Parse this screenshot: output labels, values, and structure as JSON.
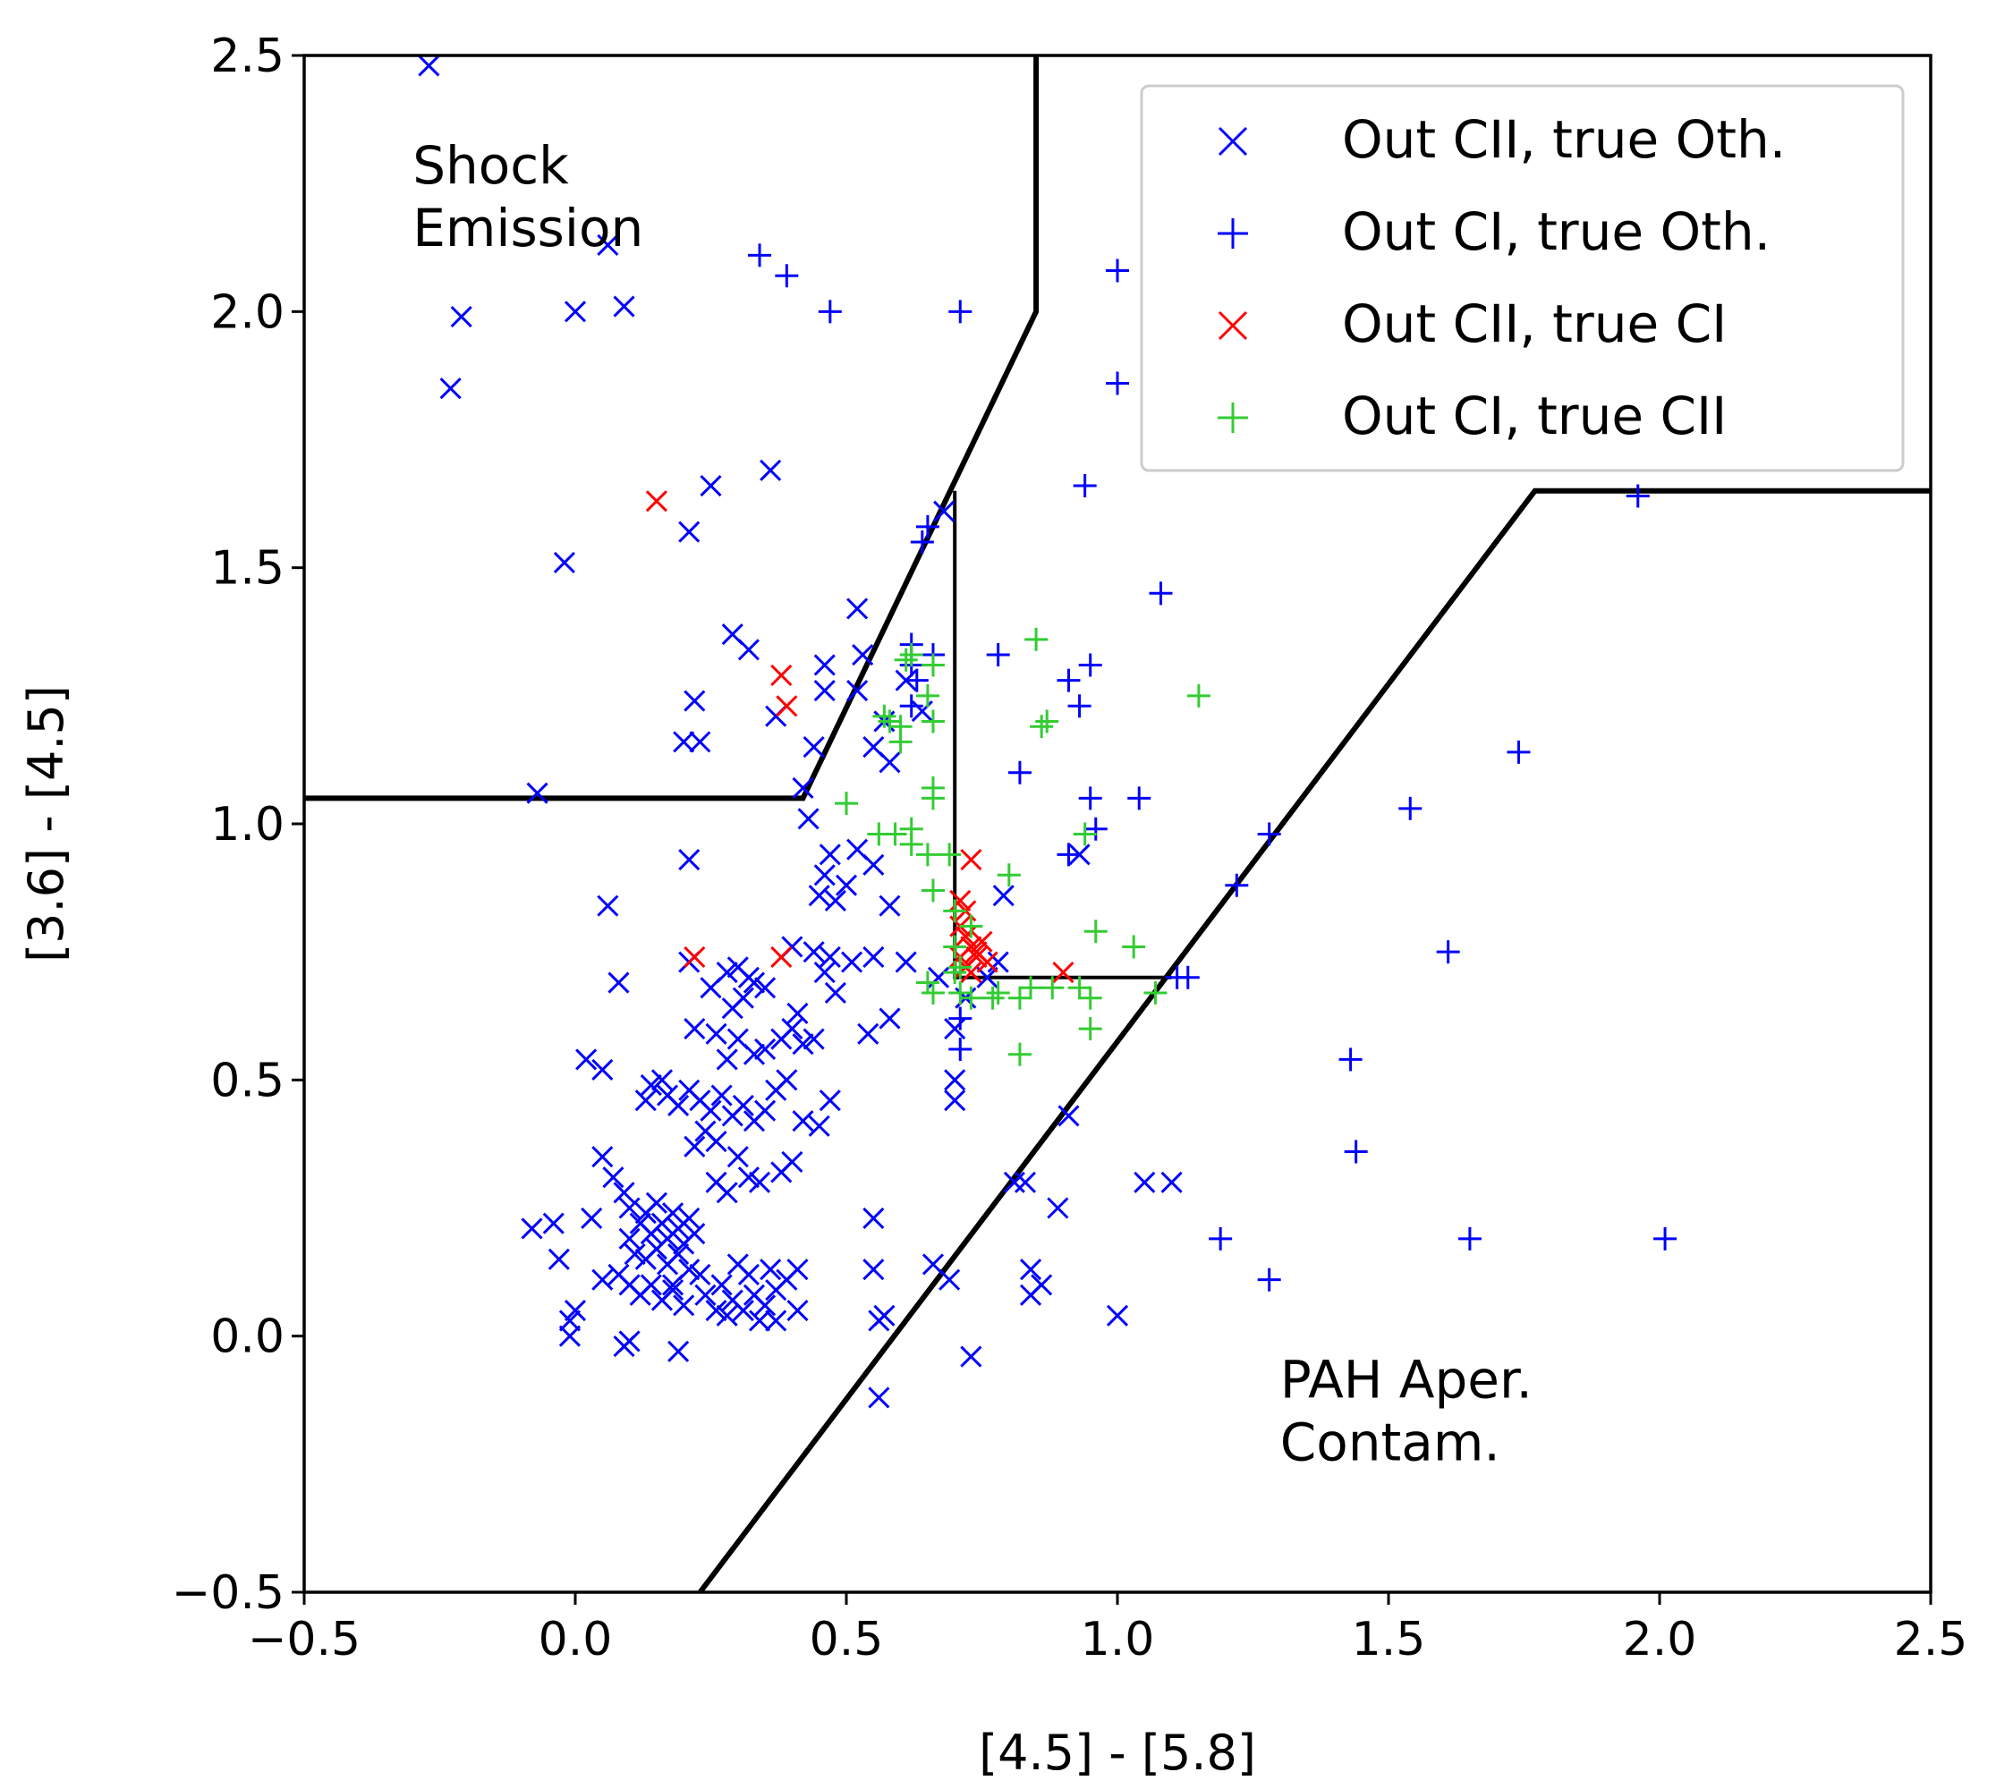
{
  "chart_data": {
    "type": "scatter",
    "title": "",
    "xlabel": "[4.5] - [5.8]",
    "ylabel": "[3.6] - [4.5]",
    "xlim": [
      -0.5,
      2.5
    ],
    "ylim": [
      -0.5,
      2.5
    ],
    "xticks": [
      -0.5,
      0.0,
      0.5,
      1.0,
      1.5,
      2.0,
      2.5
    ],
    "yticks": [
      -0.5,
      0.0,
      0.5,
      1.0,
      1.5,
      2.0,
      2.5
    ],
    "xtick_labels": [
      "−0.5",
      "0.0",
      "0.5",
      "1.0",
      "1.5",
      "2.0",
      "2.5"
    ],
    "ytick_labels": [
      "−0.5",
      "0.0",
      "0.5",
      "1.0",
      "1.5",
      "2.0",
      "2.5"
    ],
    "grid": false,
    "legend_position": "top-right",
    "annotations": [
      {
        "lines": [
          "Shock",
          "Emission"
        ],
        "x": -0.3,
        "y": 2.25
      },
      {
        "lines": [
          "PAH Aper.",
          "Contam."
        ],
        "x": 1.3,
        "y": -0.12
      }
    ],
    "boundaries": [
      {
        "name": "shock-boundary",
        "width": "thick",
        "points": [
          [
            -0.5,
            1.05
          ],
          [
            0.42,
            1.05
          ],
          [
            0.85,
            2.0
          ],
          [
            0.85,
            2.5
          ]
        ]
      },
      {
        "name": "pah-boundary",
        "width": "thick",
        "points": [
          [
            0.23,
            -0.5
          ],
          [
            1.77,
            1.65
          ],
          [
            2.5,
            1.65
          ]
        ]
      },
      {
        "name": "class-boundary",
        "width": "thin",
        "points": [
          [
            0.7,
            1.65
          ],
          [
            0.7,
            0.7
          ],
          [
            1.1,
            0.7
          ]
        ]
      }
    ],
    "series": [
      {
        "name": "Out CII, true Oth.",
        "color": "#0000ff",
        "marker": "x",
        "points": [
          [
            -0.27,
            2.48
          ],
          [
            0.06,
            2.13
          ],
          [
            -0.21,
            1.99
          ],
          [
            0.0,
            2.0
          ],
          [
            0.09,
            2.01
          ],
          [
            -0.23,
            1.85
          ],
          [
            0.36,
            1.69
          ],
          [
            0.25,
            1.66
          ],
          [
            0.21,
            1.57
          ],
          [
            -0.02,
            1.51
          ],
          [
            0.68,
            1.61
          ],
          [
            0.52,
            1.42
          ],
          [
            0.29,
            1.37
          ],
          [
            0.32,
            1.34
          ],
          [
            0.46,
            1.31
          ],
          [
            0.53,
            1.33
          ],
          [
            0.52,
            1.26
          ],
          [
            0.46,
            1.26
          ],
          [
            0.61,
            1.28
          ],
          [
            0.22,
            1.24
          ],
          [
            0.57,
            1.2
          ],
          [
            0.55,
            1.15
          ],
          [
            0.2,
            1.16
          ],
          [
            0.23,
            1.16
          ],
          [
            0.44,
            1.15
          ],
          [
            0.37,
            1.21
          ],
          [
            0.64,
            1.22
          ],
          [
            0.58,
            1.12
          ],
          [
            -0.07,
            1.06
          ],
          [
            0.42,
            1.07
          ],
          [
            0.43,
            1.01
          ],
          [
            0.46,
            0.9
          ],
          [
            0.47,
            0.94
          ],
          [
            0.5,
            0.88
          ],
          [
            0.52,
            0.95
          ],
          [
            0.55,
            0.92
          ],
          [
            0.45,
            0.86
          ],
          [
            0.48,
            0.85
          ],
          [
            0.21,
            0.93
          ],
          [
            0.06,
            0.84
          ],
          [
            0.58,
            0.84
          ],
          [
            0.08,
            0.69
          ],
          [
            0.4,
            0.76
          ],
          [
            0.44,
            0.75
          ],
          [
            0.46,
            0.71
          ],
          [
            0.47,
            0.74
          ],
          [
            0.48,
            0.67
          ],
          [
            0.51,
            0.73
          ],
          [
            0.55,
            0.74
          ],
          [
            0.61,
            0.73
          ],
          [
            0.67,
            0.7
          ],
          [
            0.7,
            0.6
          ],
          [
            0.72,
            0.66
          ],
          [
            0.7,
            0.5
          ],
          [
            0.7,
            0.46
          ],
          [
            0.79,
            0.86
          ],
          [
            0.76,
            0.7
          ],
          [
            0.78,
            0.73
          ],
          [
            0.93,
            0.94
          ],
          [
            0.58,
            0.62
          ],
          [
            0.54,
            0.59
          ],
          [
            0.21,
            0.73
          ],
          [
            0.25,
            0.68
          ],
          [
            0.28,
            0.71
          ],
          [
            0.3,
            0.72
          ],
          [
            0.32,
            0.7
          ],
          [
            0.33,
            0.69
          ],
          [
            0.35,
            0.68
          ],
          [
            0.31,
            0.66
          ],
          [
            0.29,
            0.64
          ],
          [
            0.22,
            0.6
          ],
          [
            0.26,
            0.59
          ],
          [
            0.3,
            0.58
          ],
          [
            0.33,
            0.55
          ],
          [
            0.28,
            0.54
          ],
          [
            0.35,
            0.56
          ],
          [
            0.38,
            0.58
          ],
          [
            0.4,
            0.6
          ],
          [
            0.41,
            0.63
          ],
          [
            0.42,
            0.57
          ],
          [
            0.44,
            0.58
          ],
          [
            0.47,
            0.46
          ],
          [
            0.45,
            0.41
          ],
          [
            0.42,
            0.42
          ],
          [
            0.02,
            0.54
          ],
          [
            0.05,
            0.52
          ],
          [
            0.13,
            0.46
          ],
          [
            0.14,
            0.49
          ],
          [
            0.16,
            0.5
          ],
          [
            0.17,
            0.47
          ],
          [
            0.19,
            0.45
          ],
          [
            0.21,
            0.48
          ],
          [
            0.23,
            0.46
          ],
          [
            0.25,
            0.44
          ],
          [
            0.27,
            0.47
          ],
          [
            0.29,
            0.43
          ],
          [
            0.31,
            0.45
          ],
          [
            0.33,
            0.42
          ],
          [
            0.35,
            0.44
          ],
          [
            0.37,
            0.48
          ],
          [
            0.39,
            0.5
          ],
          [
            0.24,
            0.4
          ],
          [
            0.26,
            0.38
          ],
          [
            0.22,
            0.37
          ],
          [
            0.3,
            0.35
          ],
          [
            0.32,
            0.31
          ],
          [
            0.34,
            0.3
          ],
          [
            0.26,
            0.3
          ],
          [
            0.28,
            0.28
          ],
          [
            0.38,
            0.32
          ],
          [
            0.4,
            0.34
          ],
          [
            0.05,
            0.35
          ],
          [
            0.07,
            0.31
          ],
          [
            0.09,
            0.28
          ],
          [
            0.1,
            0.25
          ],
          [
            0.12,
            0.22
          ],
          [
            0.13,
            0.24
          ],
          [
            0.14,
            0.2
          ],
          [
            0.15,
            0.26
          ],
          [
            0.16,
            0.22
          ],
          [
            0.17,
            0.19
          ],
          [
            0.18,
            0.24
          ],
          [
            0.19,
            0.21
          ],
          [
            0.2,
            0.18
          ],
          [
            0.21,
            0.23
          ],
          [
            0.22,
            0.2
          ],
          [
            0.1,
            0.19
          ],
          [
            0.11,
            0.16
          ],
          [
            0.13,
            0.15
          ],
          [
            0.15,
            0.17
          ],
          [
            0.17,
            0.14
          ],
          [
            0.19,
            0.16
          ],
          [
            0.21,
            0.13
          ],
          [
            0.23,
            0.12
          ],
          [
            -0.08,
            0.21
          ],
          [
            -0.04,
            0.22
          ],
          [
            -0.03,
            0.15
          ],
          [
            0.03,
            0.23
          ],
          [
            0.05,
            0.11
          ],
          [
            0.08,
            0.12
          ],
          [
            0.1,
            0.1
          ],
          [
            0.12,
            0.08
          ],
          [
            0.14,
            0.1
          ],
          [
            0.16,
            0.07
          ],
          [
            0.18,
            0.09
          ],
          [
            0.2,
            0.06
          ],
          [
            0.27,
            0.1
          ],
          [
            0.29,
            0.07
          ],
          [
            0.31,
            0.05
          ],
          [
            0.33,
            0.08
          ],
          [
            0.35,
            0.06
          ],
          [
            0.37,
            0.09
          ],
          [
            0.39,
            0.11
          ],
          [
            0.41,
            0.13
          ],
          [
            0.3,
            0.14
          ],
          [
            0.32,
            0.12
          ],
          [
            0.36,
            0.13
          ],
          [
            0.26,
            0.05
          ],
          [
            0.28,
            0.04
          ],
          [
            0.34,
            0.03
          ],
          [
            0.37,
            0.03
          ],
          [
            0.41,
            0.05
          ],
          [
            0.24,
            0.08
          ],
          [
            0.0,
            0.05
          ],
          [
            -0.01,
            0.03
          ],
          [
            0.1,
            -0.01
          ],
          [
            0.09,
            -0.02
          ],
          [
            0.19,
            -0.03
          ],
          [
            -0.01,
            0.0
          ],
          [
            0.18,
            0.1
          ],
          [
            0.55,
            0.23
          ],
          [
            0.55,
            0.13
          ],
          [
            0.57,
            0.04
          ],
          [
            0.56,
            0.03
          ],
          [
            0.56,
            -0.12
          ],
          [
            0.66,
            0.14
          ],
          [
            0.69,
            0.11
          ],
          [
            0.73,
            -0.04
          ],
          [
            0.83,
            0.3
          ],
          [
            0.84,
            0.13
          ],
          [
            0.86,
            0.1
          ],
          [
            0.84,
            0.08
          ],
          [
            0.89,
            0.25
          ],
          [
            0.91,
            0.43
          ],
          [
            0.81,
            0.3
          ],
          [
            1.05,
            0.3
          ],
          [
            1.1,
            0.3
          ],
          [
            1.0,
            0.04
          ]
        ]
      },
      {
        "name": "Out CI, true Oth.",
        "color": "#0000ff",
        "marker": "+",
        "points": [
          [
            0.34,
            2.11
          ],
          [
            0.39,
            2.07
          ],
          [
            0.47,
            2.0
          ],
          [
            0.71,
            2.0
          ],
          [
            1.0,
            2.08
          ],
          [
            1.0,
            1.86
          ],
          [
            0.94,
            1.66
          ],
          [
            0.64,
            1.55
          ],
          [
            0.65,
            1.58
          ],
          [
            1.08,
            1.45
          ],
          [
            0.78,
            1.33
          ],
          [
            0.62,
            1.35
          ],
          [
            0.62,
            1.31
          ],
          [
            0.63,
            1.28
          ],
          [
            0.62,
            1.23
          ],
          [
            0.66,
            1.33
          ],
          [
            0.95,
            1.31
          ],
          [
            0.93,
            1.23
          ],
          [
            0.91,
            1.28
          ],
          [
            1.74,
            1.14
          ],
          [
            0.82,
            1.1
          ],
          [
            0.95,
            1.05
          ],
          [
            1.04,
            1.05
          ],
          [
            0.96,
            0.99
          ],
          [
            1.54,
            1.03
          ],
          [
            1.28,
            0.98
          ],
          [
            1.22,
            0.88
          ],
          [
            0.91,
            0.94
          ],
          [
            1.61,
            0.75
          ],
          [
            1.13,
            0.7
          ],
          [
            1.11,
            0.7
          ],
          [
            1.43,
            0.54
          ],
          [
            1.44,
            0.36
          ],
          [
            1.19,
            0.19
          ],
          [
            1.28,
            0.11
          ],
          [
            1.65,
            0.19
          ],
          [
            2.01,
            0.19
          ],
          [
            1.96,
            1.64
          ],
          [
            0.71,
            0.62
          ],
          [
            0.71,
            0.56
          ]
        ]
      },
      {
        "name": "Out CII, true CI",
        "color": "#ff0000",
        "marker": "x",
        "points": [
          [
            0.15,
            1.63
          ],
          [
            0.38,
            1.29
          ],
          [
            0.39,
            1.23
          ],
          [
            0.22,
            0.74
          ],
          [
            0.38,
            0.74
          ],
          [
            0.73,
            0.93
          ],
          [
            0.71,
            0.85
          ],
          [
            0.72,
            0.83
          ],
          [
            0.71,
            0.8
          ],
          [
            0.72,
            0.78
          ],
          [
            0.73,
            0.76
          ],
          [
            0.74,
            0.75
          ],
          [
            0.75,
            0.77
          ],
          [
            0.74,
            0.74
          ],
          [
            0.72,
            0.72
          ],
          [
            0.71,
            0.74
          ],
          [
            0.76,
            0.73
          ],
          [
            0.73,
            0.71
          ],
          [
            0.9,
            0.71
          ]
        ]
      },
      {
        "name": "Out CI, true CII",
        "color": "#33cc33",
        "marker": "+",
        "points": [
          [
            0.62,
            1.33
          ],
          [
            0.61,
            1.32
          ],
          [
            0.66,
            1.31
          ],
          [
            0.85,
            1.36
          ],
          [
            1.15,
            1.25
          ],
          [
            0.57,
            1.21
          ],
          [
            0.58,
            1.2
          ],
          [
            0.6,
            1.19
          ],
          [
            0.6,
            1.16
          ],
          [
            0.66,
            1.2
          ],
          [
            0.65,
            1.25
          ],
          [
            0.86,
            1.19
          ],
          [
            0.87,
            1.2
          ],
          [
            0.66,
            1.07
          ],
          [
            0.66,
            1.05
          ],
          [
            0.5,
            1.04
          ],
          [
            0.56,
            0.98
          ],
          [
            0.59,
            0.98
          ],
          [
            0.62,
            0.99
          ],
          [
            0.62,
            0.96
          ],
          [
            0.65,
            0.94
          ],
          [
            0.69,
            0.94
          ],
          [
            0.66,
            0.87
          ],
          [
            0.7,
            0.83
          ],
          [
            0.7,
            0.76
          ],
          [
            0.8,
            0.9
          ],
          [
            0.94,
            0.98
          ],
          [
            0.96,
            0.79
          ],
          [
            1.03,
            0.76
          ],
          [
            0.65,
            0.69
          ],
          [
            0.66,
            0.67
          ],
          [
            0.7,
            0.71
          ],
          [
            0.71,
            0.67
          ],
          [
            0.73,
            0.66
          ],
          [
            0.77,
            0.66
          ],
          [
            0.78,
            0.67
          ],
          [
            0.82,
            0.66
          ],
          [
            0.84,
            0.68
          ],
          [
            0.88,
            0.68
          ],
          [
            0.93,
            0.68
          ],
          [
            0.95,
            0.66
          ],
          [
            0.82,
            0.55
          ],
          [
            0.95,
            0.6
          ],
          [
            1.07,
            0.67
          ],
          [
            0.71,
            0.72
          ],
          [
            0.73,
            0.8
          ]
        ]
      }
    ]
  }
}
